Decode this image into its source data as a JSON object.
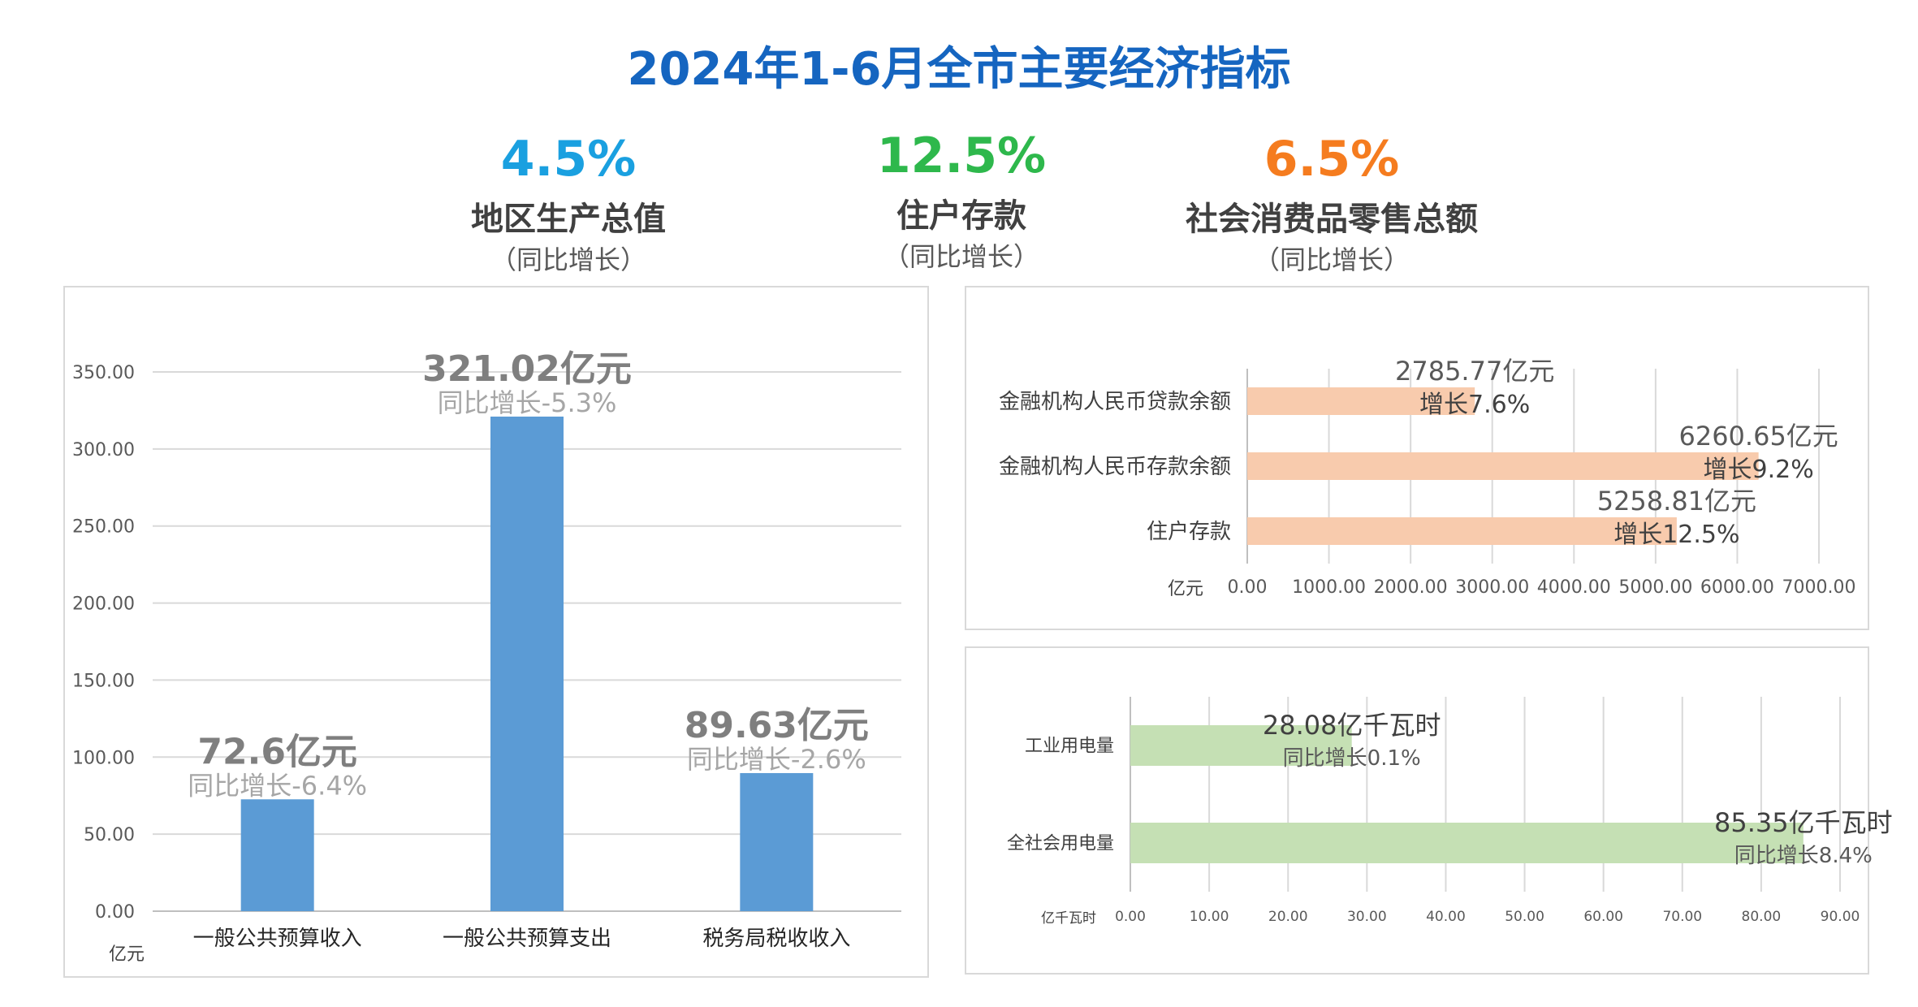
{
  "title": "2024年1-6月全市主要经济指标",
  "kpis": [
    {
      "value": "4.5%",
      "label": "地区生产总值",
      "sub": "（同比增长）",
      "color": "#1aa0e0"
    },
    {
      "value": "12.5%",
      "label": "住户存款",
      "sub": "（同比增长）",
      "color": "#2eb84c"
    },
    {
      "value": "6.5%",
      "label": "社会消费品零售总额",
      "sub": "（同比增长）",
      "color": "#f57c1f"
    }
  ],
  "chart_data": [
    {
      "type": "bar",
      "categories": [
        "一般公共预算收入",
        "一般公共预算支出",
        "税务局税收收入"
      ],
      "values": [
        72.6,
        321.02,
        89.63
      ],
      "data_labels": [
        {
          "amount": "72.6亿元",
          "growth": "同比增长-6.4%"
        },
        {
          "amount": "321.02亿元",
          "growth": "同比增长-5.3%"
        },
        {
          "amount": "89.63亿元",
          "growth": "同比增长-2.6%"
        }
      ],
      "unit_label": "亿元",
      "ylim": [
        0,
        350
      ],
      "yticks": [
        "0.00",
        "50.00",
        "100.00",
        "150.00",
        "200.00",
        "250.00",
        "300.00",
        "350.00"
      ],
      "grid": true,
      "color": "#5b9bd5"
    },
    {
      "type": "bar",
      "orientation": "horizontal",
      "categories": [
        "金融机构人民币贷款余额",
        "金融机构人民币存款余额",
        "住户存款"
      ],
      "values": [
        2785.77,
        6260.65,
        5258.81
      ],
      "data_labels": [
        {
          "amount": "2785.77亿元",
          "growth": "增长7.6%"
        },
        {
          "amount": "6260.65亿元",
          "growth": "增长9.2%"
        },
        {
          "amount": "5258.81亿元",
          "growth": "增长12.5%"
        }
      ],
      "unit_label": "亿元",
      "xlim": [
        0,
        7000
      ],
      "xticks": [
        "0.00",
        "1000.00",
        "2000.00",
        "3000.00",
        "4000.00",
        "5000.00",
        "6000.00",
        "7000.00"
      ],
      "grid": true,
      "color": "#f8cbad"
    },
    {
      "type": "bar",
      "orientation": "horizontal",
      "categories": [
        "工业用电量",
        "全社会用电量"
      ],
      "values": [
        28.08,
        85.35
      ],
      "data_labels": [
        {
          "amount": "28.08亿千瓦时",
          "growth": "同比增长0.1%"
        },
        {
          "amount": "85.35亿千瓦时",
          "growth": "同比增长8.4%"
        }
      ],
      "unit_label": "亿千瓦时",
      "xlim": [
        0,
        90
      ],
      "xticks": [
        "0.00",
        "10.00",
        "20.00",
        "30.00",
        "40.00",
        "50.00",
        "60.00",
        "70.00",
        "80.00",
        "90.00"
      ],
      "grid": true,
      "color": "#c5e0b4"
    }
  ]
}
